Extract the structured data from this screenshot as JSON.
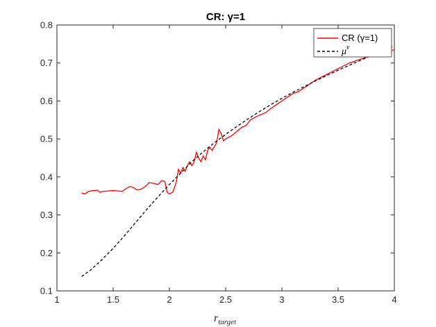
{
  "chart_data": {
    "type": "line",
    "title": "CR: γ=1",
    "xlabel": "r",
    "xlabel_subscript": "target",
    "ylabel": "",
    "xlim": [
      1,
      4
    ],
    "ylim": [
      0.1,
      0.8
    ],
    "xticks": [
      1,
      1.5,
      2,
      2.5,
      3,
      3.5,
      4
    ],
    "xtick_labels": [
      "1",
      "1.5",
      "2",
      "2.5",
      "3",
      "3.5",
      "4"
    ],
    "yticks": [
      0.1,
      0.2,
      0.3,
      0.4,
      0.5,
      0.6,
      0.7,
      0.8
    ],
    "ytick_labels": [
      "0.1",
      "0.2",
      "0.3",
      "0.4",
      "0.5",
      "0.6",
      "0.7",
      "0.8"
    ],
    "grid": false,
    "legend_placement": "top-right",
    "series": [
      {
        "name": "CR (γ=1)",
        "color": "#ff0000",
        "style": "solid",
        "x": [
          1.22,
          1.25,
          1.28,
          1.32,
          1.36,
          1.38,
          1.41,
          1.45,
          1.5,
          1.55,
          1.58,
          1.62,
          1.65,
          1.68,
          1.71,
          1.75,
          1.79,
          1.82,
          1.86,
          1.9,
          1.93,
          1.96,
          1.98,
          2.0,
          2.03,
          2.06,
          2.08,
          2.1,
          2.12,
          2.14,
          2.16,
          2.18,
          2.2,
          2.22,
          2.24,
          2.26,
          2.28,
          2.3,
          2.32,
          2.34,
          2.36,
          2.38,
          2.4,
          2.42,
          2.44,
          2.46,
          2.48,
          2.5,
          2.53,
          2.56,
          2.6,
          2.64,
          2.68,
          2.72,
          2.75,
          2.78,
          2.82,
          2.86,
          2.9,
          2.95,
          3.0,
          3.05,
          3.1,
          3.15,
          3.2,
          3.3,
          3.4,
          3.5,
          3.6,
          3.7,
          3.8,
          3.9,
          3.95,
          4.0
        ],
        "y": [
          0.358,
          0.355,
          0.362,
          0.364,
          0.365,
          0.36,
          0.362,
          0.363,
          0.364,
          0.363,
          0.362,
          0.37,
          0.375,
          0.372,
          0.366,
          0.368,
          0.376,
          0.385,
          0.383,
          0.38,
          0.39,
          0.388,
          0.36,
          0.355,
          0.36,
          0.385,
          0.42,
          0.41,
          0.425,
          0.415,
          0.43,
          0.44,
          0.43,
          0.44,
          0.465,
          0.45,
          0.44,
          0.455,
          0.445,
          0.47,
          0.478,
          0.47,
          0.48,
          0.49,
          0.525,
          0.515,
          0.495,
          0.5,
          0.505,
          0.51,
          0.52,
          0.53,
          0.535,
          0.55,
          0.555,
          0.56,
          0.565,
          0.57,
          0.58,
          0.59,
          0.6,
          0.61,
          0.62,
          0.625,
          0.635,
          0.655,
          0.67,
          0.685,
          0.7,
          0.71,
          0.72,
          0.728,
          0.73,
          0.735
        ]
      },
      {
        "name": "μ",
        "name_superscript": "ν",
        "color": "#000000",
        "style": "dashed",
        "x": [
          1.22,
          1.3,
          1.4,
          1.5,
          1.6,
          1.7,
          1.8,
          1.9,
          2.0,
          2.1,
          2.2,
          2.3,
          2.4,
          2.5,
          2.6,
          2.7,
          2.8,
          2.9,
          3.0,
          3.1,
          3.2,
          3.3,
          3.4,
          3.5,
          3.6,
          3.7,
          3.8,
          3.9,
          4.0
        ],
        "y": [
          0.138,
          0.155,
          0.182,
          0.212,
          0.245,
          0.28,
          0.315,
          0.348,
          0.38,
          0.41,
          0.44,
          0.466,
          0.49,
          0.512,
          0.533,
          0.553,
          0.572,
          0.59,
          0.607,
          0.623,
          0.638,
          0.653,
          0.667,
          0.681,
          0.694,
          0.707,
          0.72,
          0.732,
          0.745
        ]
      }
    ]
  }
}
